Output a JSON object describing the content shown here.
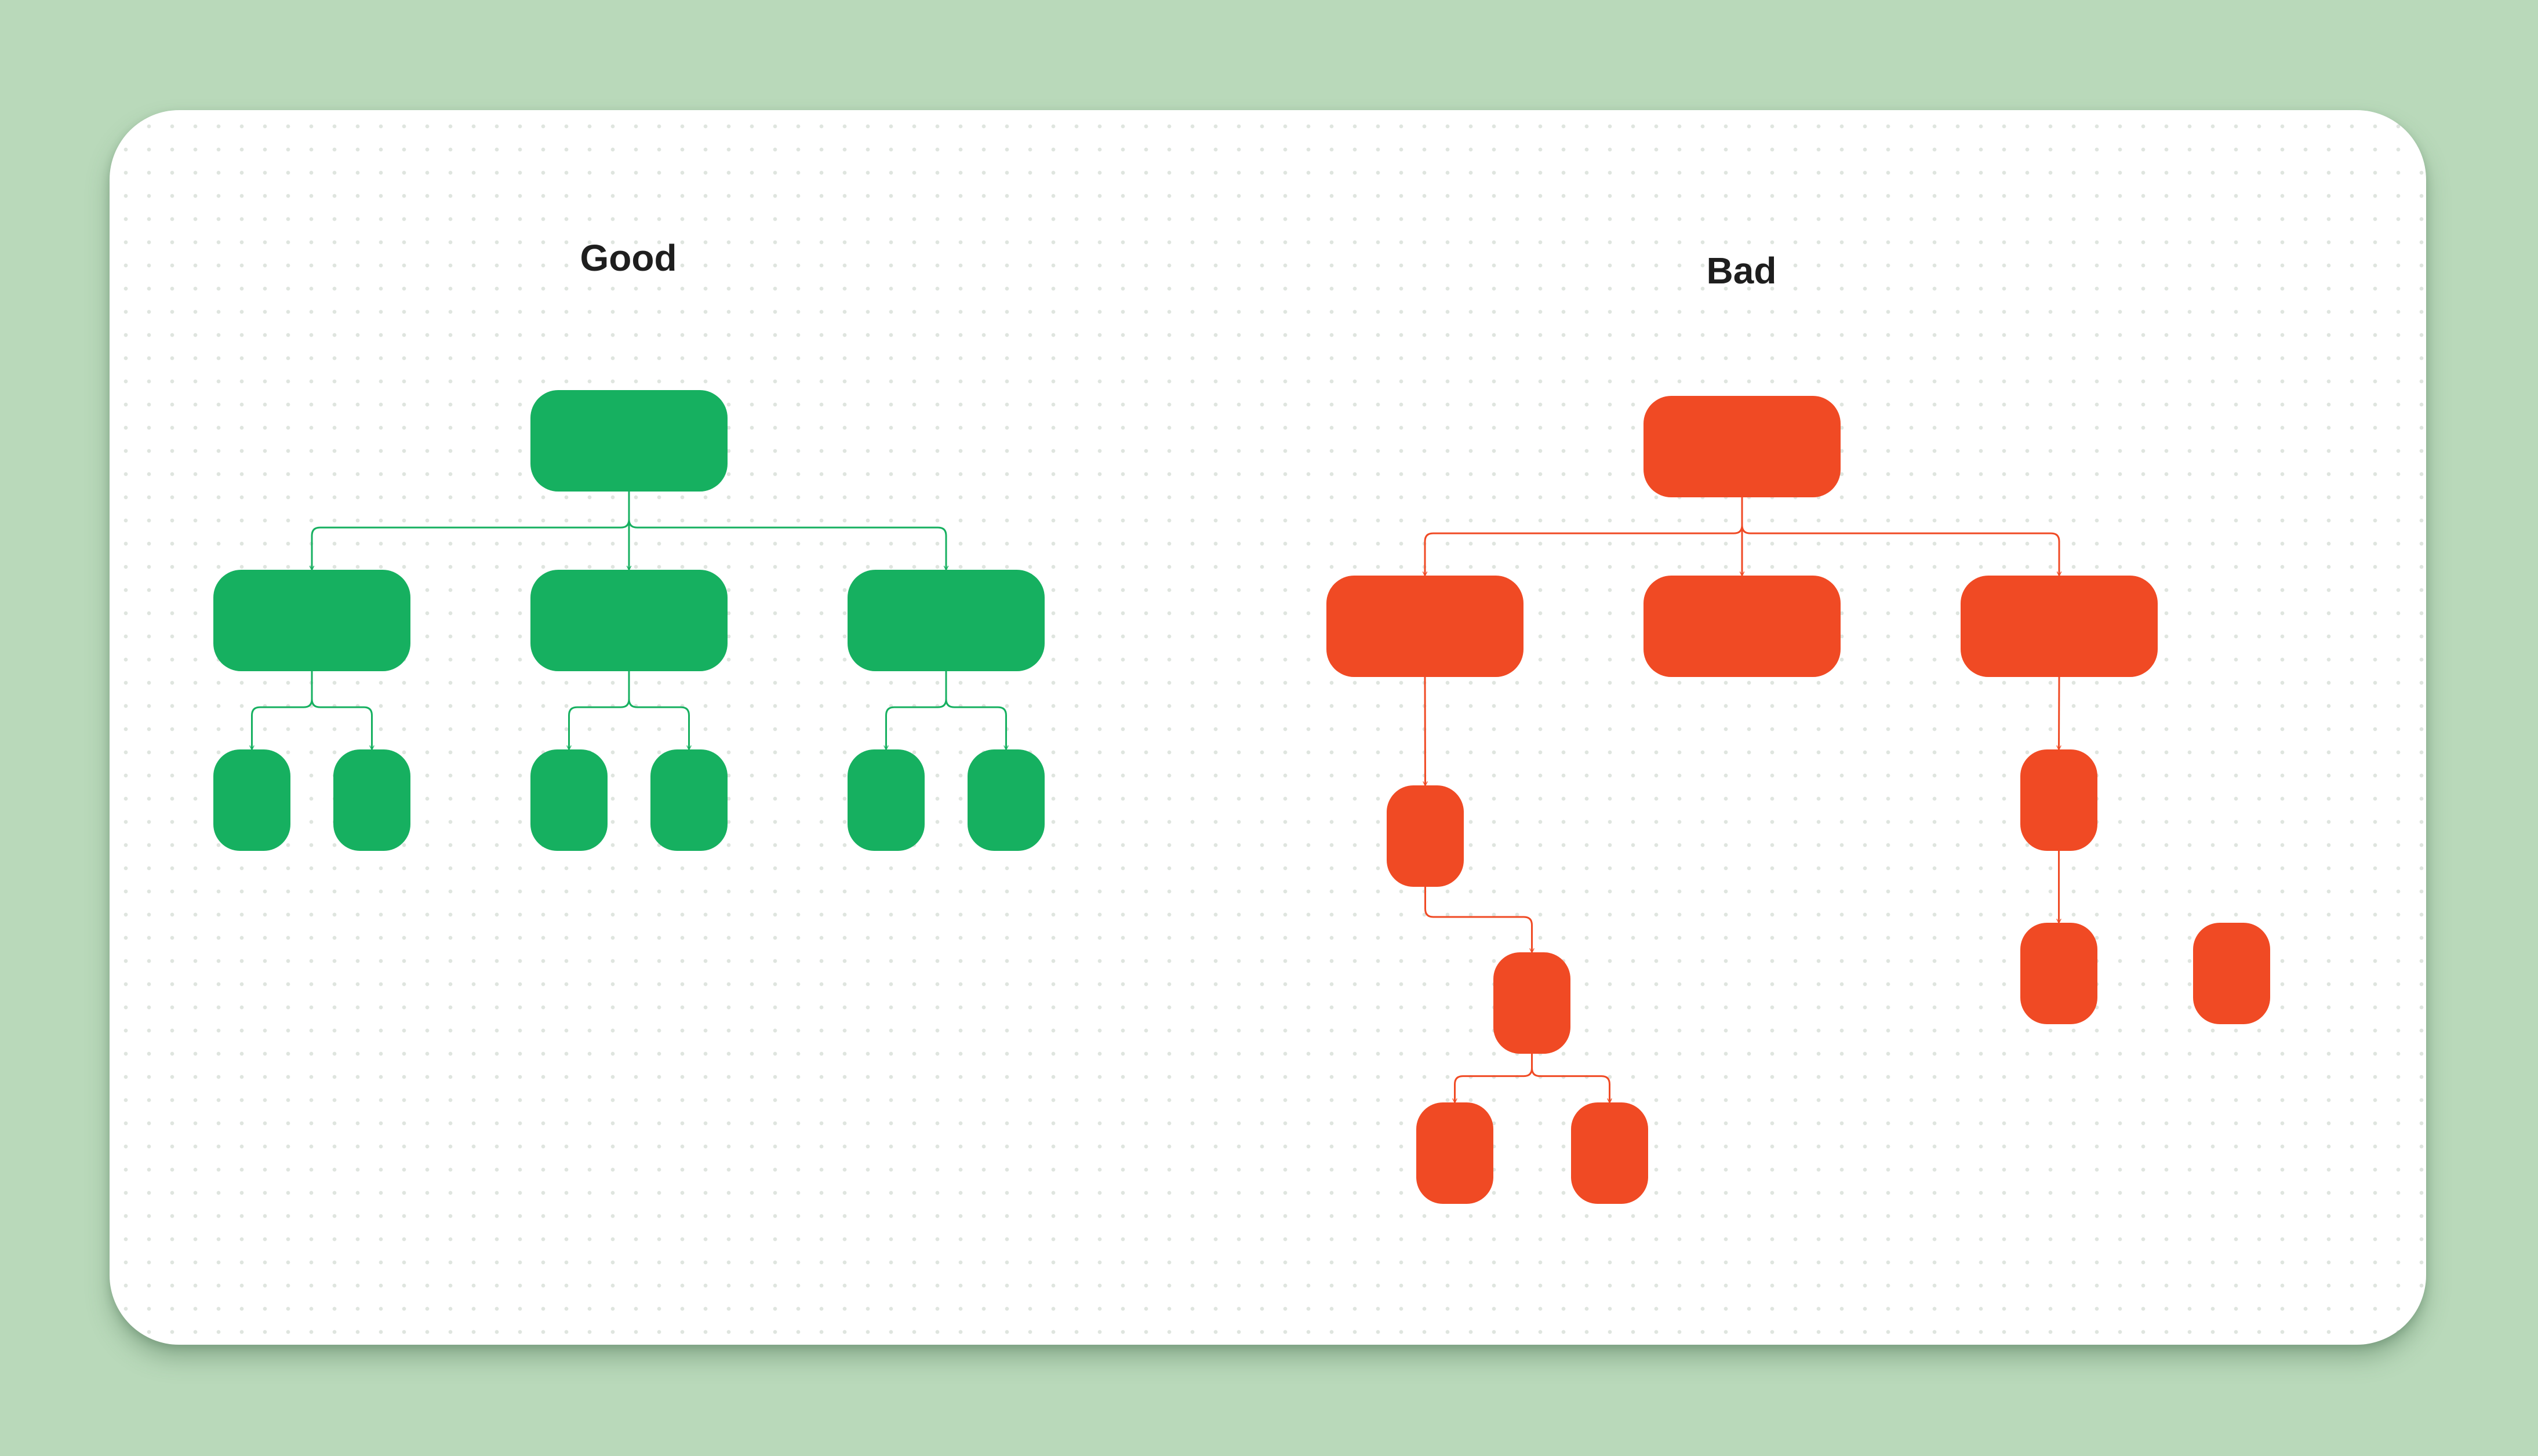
{
  "panels": {
    "good": {
      "title": "Good",
      "color": "#16b060",
      "nodes": [
        "root",
        "child-1",
        "child-2",
        "child-3",
        "leaf-1a",
        "leaf-1b",
        "leaf-2a",
        "leaf-2b",
        "leaf-3a",
        "leaf-3b"
      ],
      "edges": [
        [
          "root",
          "child-1"
        ],
        [
          "root",
          "child-2"
        ],
        [
          "root",
          "child-3"
        ],
        [
          "child-1",
          "leaf-1a"
        ],
        [
          "child-1",
          "leaf-1b"
        ],
        [
          "child-2",
          "leaf-2a"
        ],
        [
          "child-2",
          "leaf-2b"
        ],
        [
          "child-3",
          "leaf-3a"
        ],
        [
          "child-3",
          "leaf-3b"
        ]
      ]
    },
    "bad": {
      "title": "Bad",
      "color": "#f04a24",
      "nodes": [
        "root",
        "child-1",
        "child-2",
        "child-3",
        "node-a",
        "node-b",
        "node-c",
        "node-d",
        "node-e",
        "node-f",
        "node-g"
      ],
      "edges": [
        [
          "root",
          "child-1"
        ],
        [
          "root",
          "child-2"
        ],
        [
          "root",
          "child-3"
        ],
        [
          "child-1",
          "node-a"
        ],
        [
          "node-a",
          "node-b"
        ],
        [
          "node-b",
          "node-c"
        ],
        [
          "node-b",
          "node-d"
        ],
        [
          "child-3",
          "node-e"
        ],
        [
          "node-e",
          "node-f"
        ]
      ],
      "disconnected": [
        "node-g"
      ]
    }
  }
}
